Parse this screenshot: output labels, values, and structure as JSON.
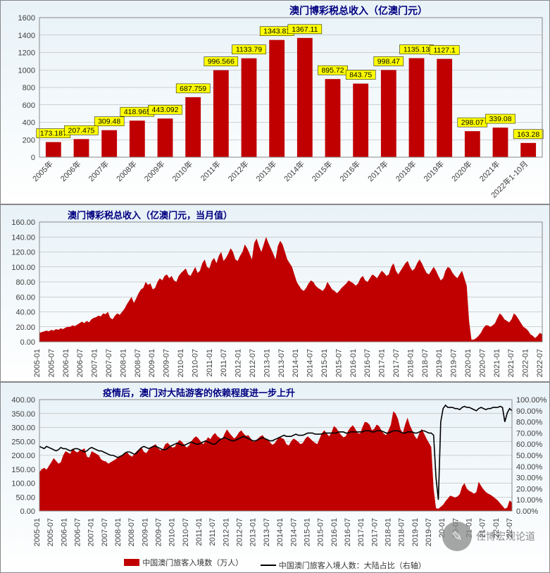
{
  "colors": {
    "bar": "#c00000",
    "line": "#000000",
    "grid": "#a8a8a8",
    "border": "#888888",
    "title": "#000080",
    "label_bg": "#ffff00",
    "label_border": "#000000",
    "bg_top": "#e8f2f7",
    "bg_bottom": "#ffffff"
  },
  "chart1": {
    "title": "澳门博彩税总收入（亿澳门元）",
    "title_fontsize": 14,
    "ylim": [
      0,
      1600
    ],
    "ytick_step": 200,
    "categories": [
      "2005年",
      "2006年",
      "2007年",
      "2008年",
      "2009年",
      "2010年",
      "2011年",
      "2012年",
      "2013年",
      "2014年",
      "2015年",
      "2016年",
      "2017年",
      "2018年",
      "2019年",
      "2020年",
      "2021年",
      "2022年1-10月"
    ],
    "values": [
      173.187,
      207.475,
      309.48,
      418.965,
      443.092,
      687.759,
      996.566,
      1133.79,
      1343.81,
      1367.11,
      895.72,
      843.75,
      998.47,
      1135.13,
      1127.1,
      298.07,
      339.08,
      163.28
    ],
    "bar_width": 0.55,
    "xaxis_rotate": -45
  },
  "chart2": {
    "title": "澳门博彩税总收入（亿澳门元，当月值）",
    "title_fontsize": 13,
    "ylim": [
      0,
      160
    ],
    "ytick_step": 20,
    "x_labels": [
      "2005-01",
      "2005-07",
      "2006-01",
      "2006-07",
      "2007-01",
      "2007-07",
      "2008-01",
      "2008-07",
      "2009-01",
      "2009-07",
      "2010-01",
      "2010-07",
      "2011-01",
      "2011-07",
      "2012-01",
      "2012-07",
      "2013-01",
      "2013-07",
      "2014-01",
      "2014-07",
      "2015-01",
      "2015-07",
      "2016-01",
      "2016-07",
      "2017-01",
      "2017-07",
      "2018-01",
      "2018-07",
      "2019-01",
      "2019-07",
      "2020-01",
      "2020-07",
      "2021-01",
      "2021-07",
      "2022-01",
      "2022-07"
    ],
    "series": [
      12,
      13,
      14,
      15,
      14,
      16,
      15,
      17,
      16,
      18,
      17,
      19,
      20,
      20,
      22,
      21,
      23,
      25,
      27,
      25,
      28,
      26,
      30,
      32,
      33,
      35,
      34,
      38,
      37,
      40,
      32,
      30,
      35,
      38,
      36,
      40,
      44,
      50,
      55,
      60,
      52,
      58,
      65,
      70,
      72,
      80,
      76,
      78,
      70,
      72,
      80,
      85,
      82,
      88,
      90,
      85,
      88,
      82,
      80,
      88,
      92,
      95,
      98,
      90,
      88,
      94,
      100,
      92,
      95,
      105,
      110,
      100,
      98,
      108,
      112,
      105,
      115,
      120,
      108,
      112,
      118,
      125,
      120,
      110,
      108,
      115,
      120,
      130,
      125,
      118,
      110,
      132,
      138,
      128,
      120,
      130,
      140,
      132,
      125,
      118,
      110,
      128,
      135,
      130,
      120,
      110,
      105,
      100,
      90,
      80,
      75,
      70,
      68,
      72,
      78,
      82,
      80,
      75,
      72,
      70,
      68,
      72,
      80,
      75,
      70,
      68,
      65,
      68,
      72,
      75,
      78,
      82,
      80,
      78,
      75,
      78,
      85,
      88,
      82,
      80,
      85,
      90,
      88,
      85,
      90,
      95,
      92,
      88,
      90,
      100,
      105,
      95,
      90,
      95,
      100,
      105,
      108,
      100,
      95,
      98,
      105,
      110,
      105,
      98,
      92,
      90,
      95,
      100,
      95,
      88,
      82,
      85,
      95,
      100,
      98,
      92,
      88,
      85,
      90,
      95,
      85,
      75,
      28,
      3,
      3,
      5,
      8,
      12,
      18,
      22,
      22,
      20,
      22,
      25,
      32,
      38,
      35,
      30,
      28,
      26,
      30,
      38,
      35,
      30,
      25,
      20,
      18,
      15,
      10,
      8,
      5,
      8,
      12,
      10
    ]
  },
  "chart3": {
    "title": "疫情后，澳门对大陆游客的依赖程度进一步上升",
    "title_fontsize": 13,
    "legend": {
      "series1": "中国澳门旅客入境数（万人）",
      "series2": "中国澳门旅客入境人数：大陆占比（右轴）"
    },
    "ylim_left": [
      0,
      400
    ],
    "ytick_step_left": 50,
    "ylim_right": [
      0,
      100
    ],
    "ytick_step_right": 10,
    "right_suffix": "%",
    "x_labels": [
      "2005-01",
      "2005-07",
      "2006-01",
      "2006-07",
      "2007-01",
      "2007-07",
      "2008-01",
      "2008-07",
      "2009-01",
      "2009-07",
      "2010-01",
      "2010-07",
      "2011-01",
      "2011-07",
      "2012-01",
      "2012-07",
      "2013-01",
      "2013-07",
      "2014-01",
      "2014-07",
      "2015-01",
      "2015-07",
      "2016-01",
      "2016-07",
      "2017-01",
      "2017-07",
      "2018-01",
      "2018-07",
      "2019-01",
      "2019-07",
      "20-01",
      "20-07",
      "21-01",
      "21-07",
      "22-01",
      "22-07"
    ],
    "visitors": [
      140,
      150,
      155,
      148,
      162,
      175,
      190,
      180,
      170,
      175,
      200,
      215,
      210,
      205,
      225,
      215,
      210,
      218,
      220,
      225,
      195,
      192,
      215,
      210,
      205,
      200,
      185,
      180,
      178,
      170,
      175,
      180,
      185,
      192,
      195,
      200,
      205,
      210,
      200,
      195,
      205,
      215,
      222,
      228,
      212,
      208,
      220,
      230,
      235,
      240,
      225,
      218,
      222,
      240,
      245,
      235,
      228,
      230,
      245,
      255,
      248,
      238,
      228,
      235,
      250,
      262,
      268,
      260,
      248,
      240,
      252,
      265,
      258,
      272,
      280,
      268,
      262,
      258,
      278,
      293,
      280,
      270,
      260,
      268,
      282,
      290,
      278,
      270,
      272,
      260,
      248,
      252,
      260,
      268,
      272,
      260,
      255,
      248,
      238,
      242,
      255,
      265,
      262,
      258,
      240,
      235,
      250,
      260,
      255,
      248,
      240,
      245,
      260,
      268,
      260,
      252,
      245,
      240,
      260,
      280,
      290,
      278,
      268,
      282,
      305,
      298,
      285,
      273,
      265,
      268,
      288,
      300,
      308,
      295,
      280,
      278,
      300,
      320,
      318,
      310,
      290,
      295,
      310,
      305,
      290,
      278,
      272,
      290,
      310,
      358,
      350,
      330,
      295,
      280,
      310,
      335,
      308,
      290,
      270,
      258,
      280,
      295,
      278,
      260,
      245,
      230,
      80,
      10,
      8,
      15,
      22,
      35,
      45,
      55,
      52,
      48,
      52,
      60,
      88,
      100,
      80,
      72,
      68,
      62,
      68,
      105,
      90,
      78,
      68,
      62,
      58,
      52,
      45,
      38,
      28,
      18,
      8,
      12,
      38,
      30
    ],
    "ratio": [
      58,
      57,
      56,
      58,
      57,
      56,
      55,
      54,
      55,
      57,
      56,
      56,
      55,
      54,
      55,
      56,
      56,
      55,
      54,
      53,
      54,
      56,
      57,
      56,
      55,
      54,
      54,
      53,
      52,
      51,
      50,
      50,
      49,
      48,
      49,
      50,
      52,
      53,
      53,
      52,
      51,
      52,
      55,
      57,
      58,
      57,
      56,
      57,
      58,
      58,
      57,
      56,
      55,
      55,
      56,
      58,
      59,
      60,
      61,
      60,
      59,
      59,
      60,
      61,
      62,
      61,
      60,
      60,
      61,
      62,
      63,
      62,
      61,
      60,
      60,
      62,
      64,
      65,
      66,
      65,
      64,
      63,
      63,
      64,
      65,
      66,
      67,
      66,
      65,
      64,
      63,
      63,
      64,
      65,
      66,
      65,
      64,
      63,
      63,
      64,
      65,
      66,
      67,
      68,
      67,
      67,
      67,
      68,
      69,
      68,
      68,
      68,
      69,
      70,
      70,
      70,
      69,
      69,
      69,
      69,
      70,
      70,
      70,
      70,
      70,
      70,
      71,
      71,
      71,
      70,
      70,
      71,
      71,
      71,
      71,
      71,
      71,
      72,
      72,
      72,
      71,
      71,
      72,
      72,
      72,
      71,
      70,
      70,
      71,
      72,
      72,
      72,
      71,
      70,
      70,
      71,
      71,
      71,
      70,
      70,
      71,
      72,
      72,
      71,
      70,
      70,
      68,
      30,
      10,
      80,
      92,
      95,
      93,
      93,
      93,
      92,
      92,
      91,
      93,
      94,
      93,
      93,
      92,
      91,
      90,
      92,
      93,
      92,
      91,
      92,
      92,
      93,
      93,
      93,
      94,
      93,
      80,
      88,
      92,
      90
    ]
  },
  "watermark": "任博宏观论道"
}
